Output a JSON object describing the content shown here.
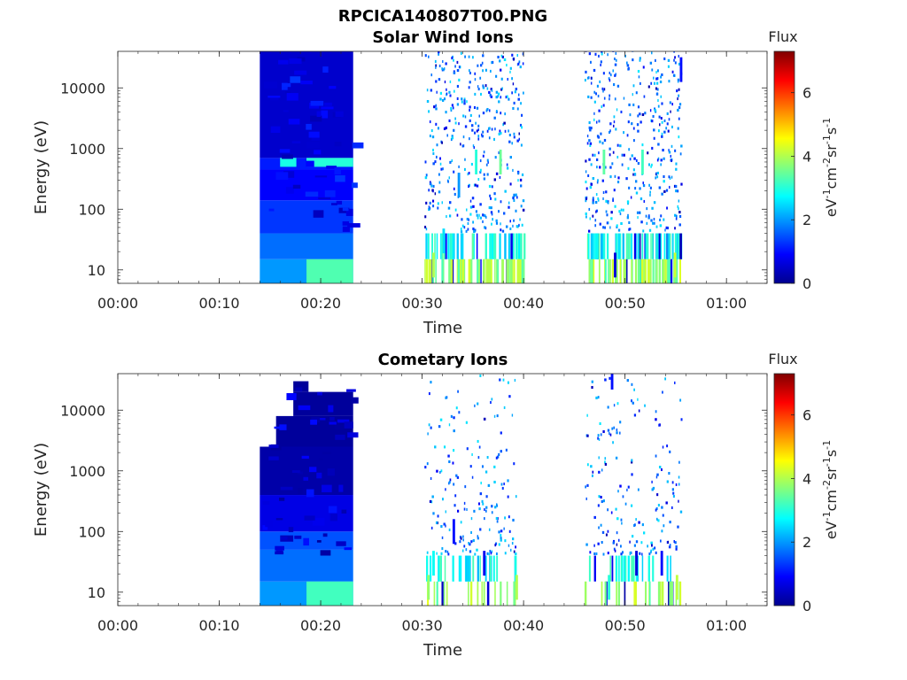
{
  "figure": {
    "title": "RPCICA140807T00.PNG"
  },
  "colormap": [
    "#00008f",
    "#0000ff",
    "#0080ff",
    "#00ffff",
    "#80ff80",
    "#ffff00",
    "#ff8000",
    "#ff0000",
    "#800000"
  ],
  "chart_data": [
    {
      "type": "heatmap",
      "title": "Solar Wind Ions",
      "xlabel": "Time",
      "ylabel": "Energy (eV)",
      "yscale": "log",
      "xlim_min": [
        0,
        64
      ],
      "ylim_eV": [
        6,
        40000
      ],
      "xticks": [
        "00:00",
        "00:10",
        "00:20",
        "00:30",
        "00:40",
        "00:50",
        "01:00"
      ],
      "xtick_values_min": [
        0,
        10,
        20,
        30,
        40,
        50,
        60
      ],
      "yticks": [
        "10",
        "100",
        "1000",
        "10000"
      ],
      "ytick_values_eV": [
        10,
        100,
        1000,
        10000
      ],
      "colorbar": {
        "label": "Flux",
        "units": "eV-1cm-2sr-1s-1",
        "ticks": [
          "0",
          "2",
          "4",
          "6"
        ],
        "tick_values": [
          0,
          2,
          4,
          6
        ],
        "range": [
          0,
          7.3
        ]
      },
      "data_periods_min": [
        [
          14.0,
          23.2
        ],
        [
          30.2,
          40.0
        ],
        [
          46.0,
          55.5
        ]
      ],
      "dense_block": {
        "x_range_min": [
          14.0,
          23.2
        ],
        "y_range_eV": [
          6,
          40000
        ],
        "levels": [
          {
            "x": [
              14.0,
              23.2
            ],
            "y": [
              6,
              15
            ],
            "flux": 2.0
          },
          {
            "x": [
              14.0,
              23.2
            ],
            "y": [
              15,
              40
            ],
            "flux": 1.7
          },
          {
            "x": [
              14.0,
              23.2
            ],
            "y": [
              40,
              140
            ],
            "flux": 1.3
          },
          {
            "x": [
              14.0,
              23.2
            ],
            "y": [
              140,
              450
            ],
            "flux": 0.9
          },
          {
            "x": [
              14.0,
              23.2
            ],
            "y": [
              450,
              700
            ],
            "flux": 1.1
          },
          {
            "x": [
              14.0,
              23.2
            ],
            "y": [
              700,
              40000
            ],
            "flux": 0.5
          },
          {
            "x": [
              18.6,
              23.2
            ],
            "y": [
              6,
              15
            ],
            "flux": 3.3
          },
          {
            "x": [
              18.6,
              23.2
            ],
            "y": [
              500,
              700
            ],
            "flux": 3.0
          },
          {
            "x": [
              16.0,
              17.6
            ],
            "y": [
              500,
              700
            ],
            "flux": 2.9
          }
        ]
      },
      "sparse_points": [
        {
          "t": 31.0,
          "e": 12,
          "flux": 4.0
        },
        {
          "t": 32.0,
          "e": 30,
          "flux": 2.5
        },
        {
          "t": 33.5,
          "e": 250,
          "flux": 2.0
        },
        {
          "t": 35.2,
          "e": 600,
          "flux": 3.0
        },
        {
          "t": 37.6,
          "e": 600,
          "flux": 3.5
        },
        {
          "t": 47.8,
          "e": 600,
          "flux": 3.4
        },
        {
          "t": 48.9,
          "e": 12,
          "flux": 0.6
        },
        {
          "t": 51.6,
          "e": 600,
          "flux": 3.2
        },
        {
          "t": 54.8,
          "e": 12,
          "flux": 4.2
        },
        {
          "t": 55.4,
          "e": 20000,
          "flux": 1.0
        }
      ]
    },
    {
      "type": "heatmap",
      "title": "Cometary Ions",
      "xlabel": "Time",
      "ylabel": "Energy (eV)",
      "yscale": "log",
      "xlim_min": [
        0,
        64
      ],
      "ylim_eV": [
        6,
        40000
      ],
      "xticks": [
        "00:00",
        "00:10",
        "00:20",
        "00:30",
        "00:40",
        "00:50",
        "01:00"
      ],
      "xtick_values_min": [
        0,
        10,
        20,
        30,
        40,
        50,
        60
      ],
      "yticks": [
        "10",
        "100",
        "1000",
        "10000"
      ],
      "ytick_values_eV": [
        10,
        100,
        1000,
        10000
      ],
      "colorbar": {
        "label": "Flux",
        "units": "eV-1cm-2sr-1s-1",
        "ticks": [
          "0",
          "2",
          "4",
          "6"
        ],
        "tick_values": [
          0,
          2,
          4,
          6
        ],
        "range": [
          0,
          7.3
        ]
      },
      "data_periods_min": [
        [
          14.0,
          23.2
        ],
        [
          30.2,
          39.3
        ],
        [
          46.0,
          55.5
        ]
      ],
      "dense_block": {
        "x_range_min": [
          14.0,
          23.2
        ],
        "y_range_eV": [
          6,
          30000
        ],
        "levels": [
          {
            "x": [
              14.0,
              23.2
            ],
            "y": [
              6,
              15
            ],
            "flux": 2.0
          },
          {
            "x": [
              14.0,
              23.2
            ],
            "y": [
              15,
              50
            ],
            "flux": 1.7
          },
          {
            "x": [
              14.0,
              23.2
            ],
            "y": [
              50,
              100
            ],
            "flux": 1.5
          },
          {
            "x": [
              14.0,
              23.2
            ],
            "y": [
              100,
              400
            ],
            "flux": 0.7
          },
          {
            "x": [
              14.0,
              23.2
            ],
            "y": [
              400,
              2500
            ],
            "flux": 0.2
          },
          {
            "x": [
              15.6,
              23.2
            ],
            "y": [
              2500,
              8000
            ],
            "flux": 0.1
          },
          {
            "x": [
              17.3,
              23.2
            ],
            "y": [
              8000,
              20000
            ],
            "flux": 0.1
          },
          {
            "x": [
              17.3,
              18.8
            ],
            "y": [
              20000,
              30000
            ],
            "flux": 0.1
          },
          {
            "x": [
              18.6,
              23.2
            ],
            "y": [
              6,
              15
            ],
            "flux": 3.2
          }
        ]
      },
      "sparse_points": [
        {
          "t": 30.5,
          "e": 12,
          "flux": 3.8
        },
        {
          "t": 31.0,
          "e": 30,
          "flux": 2.8
        },
        {
          "t": 33.0,
          "e": 100,
          "flux": 1.0
        },
        {
          "t": 36.0,
          "e": 30,
          "flux": 0.8
        },
        {
          "t": 39.2,
          "e": 12,
          "flux": 4.0
        },
        {
          "t": 48.3,
          "e": 12,
          "flux": 3.0
        },
        {
          "t": 51.0,
          "e": 30,
          "flux": 0.6
        },
        {
          "t": 53.5,
          "e": 30,
          "flux": 1.0
        },
        {
          "t": 55.0,
          "e": 12,
          "flux": 4.1
        },
        {
          "t": 48.6,
          "e": 35000,
          "flux": 1.0
        }
      ]
    }
  ]
}
